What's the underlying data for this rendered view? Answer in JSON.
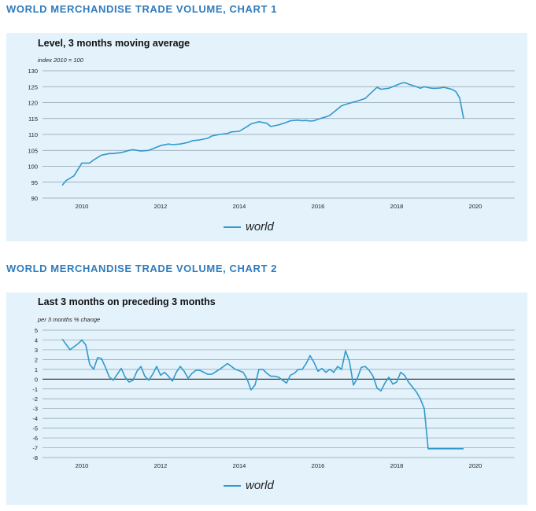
{
  "charts": {
    "c1": {
      "section_title": "WORLD MERCHANDISE TRADE VOLUME, CHART 1",
      "panel_title": "Level, 3 months moving average",
      "subtitle": "index 2010 = 100",
      "legend": "world"
    },
    "c2": {
      "section_title": "WORLD MERCHANDISE TRADE VOLUME, CHART 2",
      "panel_title": "Last 3 months on preceding 3 months",
      "subtitle": "per 3 months % change",
      "legend": "world"
    }
  },
  "colors": {
    "line": "#3399cc",
    "panel": "#e3f2fb",
    "heading": "#2f7bbd"
  },
  "chart_data": [
    {
      "type": "line",
      "title": "Level, 3 months moving average",
      "ylabel": "index 2010 = 100",
      "xlabel": "",
      "ylim": [
        90,
        130
      ],
      "xlim": [
        2009.0,
        2021.0
      ],
      "yticks": [
        90,
        95,
        100,
        105,
        110,
        115,
        120,
        125,
        130
      ],
      "xticks": [
        2010,
        2012,
        2014,
        2016,
        2018,
        2020
      ],
      "grid": true,
      "legend_position": "bottom-center",
      "series": [
        {
          "name": "world",
          "x": [
            2009.5,
            2009.6,
            2009.8,
            2009.9,
            2010.0,
            2010.2,
            2010.3,
            2010.5,
            2010.7,
            2010.8,
            2011.0,
            2011.2,
            2011.3,
            2011.5,
            2011.7,
            2011.8,
            2012.0,
            2012.2,
            2012.3,
            2012.5,
            2012.7,
            2012.8,
            2013.0,
            2013.2,
            2013.3,
            2013.5,
            2013.7,
            2013.8,
            2014.0,
            2014.2,
            2014.3,
            2014.5,
            2014.7,
            2014.8,
            2015.0,
            2015.2,
            2015.3,
            2015.5,
            2015.6,
            2015.7,
            2015.8,
            2015.9,
            2016.0,
            2016.2,
            2016.3,
            2016.5,
            2016.6,
            2016.8,
            2017.0,
            2017.2,
            2017.3,
            2017.5,
            2017.6,
            2017.8,
            2018.0,
            2018.1,
            2018.2,
            2018.3,
            2018.5,
            2018.6,
            2018.7,
            2018.8,
            2018.9,
            2019.0,
            2019.1,
            2019.2,
            2019.3,
            2019.4,
            2019.5,
            2019.6,
            2019.7
          ],
          "values": [
            94,
            95.5,
            97,
            99,
            101,
            101,
            102,
            103.5,
            104,
            104,
            104.3,
            105,
            105.2,
            104.8,
            105,
            105.5,
            106.5,
            107,
            106.8,
            107,
            107.5,
            108,
            108.3,
            108.8,
            109.5,
            110,
            110.3,
            110.8,
            111,
            112.5,
            113.3,
            114,
            113.5,
            112.5,
            113,
            113.8,
            114.3,
            114.5,
            114.3,
            114.4,
            114.2,
            114.3,
            114.8,
            115.5,
            116,
            118,
            119,
            119.8,
            120.5,
            121.3,
            122.5,
            124.8,
            124.2,
            124.5,
            125.5,
            126,
            126.3,
            125.8,
            125,
            124.5,
            125,
            124.7,
            124.5,
            124.5,
            124.6,
            124.8,
            124.5,
            124.2,
            123.5,
            121.5,
            115
          ]
        }
      ]
    },
    {
      "type": "line",
      "title": "Last 3 months on preceding 3 months",
      "ylabel": "per 3 months % change",
      "xlabel": "",
      "ylim": [
        -8,
        5
      ],
      "xlim": [
        2009.0,
        2021.0
      ],
      "yticks": [
        -8,
        -7,
        -6,
        -5,
        -4,
        -3,
        -2,
        -1,
        0,
        1,
        2,
        3,
        4,
        5
      ],
      "xticks": [
        2010,
        2012,
        2014,
        2016,
        2018,
        2020
      ],
      "grid": true,
      "legend_position": "bottom-center",
      "series": [
        {
          "name": "world",
          "x": [
            2009.5,
            2009.7,
            2009.9,
            2010.0,
            2010.1,
            2010.2,
            2010.3,
            2010.4,
            2010.5,
            2010.6,
            2010.7,
            2010.8,
            2010.9,
            2011.0,
            2011.1,
            2011.2,
            2011.3,
            2011.4,
            2011.5,
            2011.6,
            2011.7,
            2011.8,
            2011.9,
            2012.0,
            2012.1,
            2012.2,
            2012.3,
            2012.4,
            2012.5,
            2012.6,
            2012.7,
            2012.8,
            2012.9,
            2013.0,
            2013.1,
            2013.2,
            2013.3,
            2013.5,
            2013.7,
            2013.9,
            2014.1,
            2014.2,
            2014.3,
            2014.4,
            2014.5,
            2014.6,
            2014.7,
            2014.8,
            2014.9,
            2015.0,
            2015.2,
            2015.3,
            2015.4,
            2015.5,
            2015.6,
            2015.7,
            2015.8,
            2015.9,
            2016.0,
            2016.1,
            2016.2,
            2016.3,
            2016.4,
            2016.5,
            2016.6,
            2016.7,
            2016.8,
            2016.9,
            2017.0,
            2017.1,
            2017.2,
            2017.3,
            2017.4,
            2017.5,
            2017.6,
            2017.7,
            2017.8,
            2017.9,
            2018.0,
            2018.1,
            2018.2,
            2018.3,
            2018.4,
            2018.5,
            2018.6,
            2018.7,
            2018.8,
            2018.9,
            2019.0,
            2019.1,
            2019.2,
            2019.3,
            2019.4,
            2019.5,
            2019.6,
            2019.7
          ],
          "values": [
            4.1,
            3.0,
            3.6,
            4.0,
            3.5,
            1.5,
            1.0,
            2.2,
            2.1,
            1.2,
            0.2,
            -0.1,
            0.5,
            1.1,
            0.2,
            -0.3,
            -0.1,
            0.8,
            1.3,
            0.3,
            -0.1,
            0.5,
            1.3,
            0.4,
            0.7,
            0.3,
            -0.2,
            0.7,
            1.3,
            0.8,
            0.1,
            0.6,
            0.9,
            0.9,
            0.7,
            0.5,
            0.5,
            1.0,
            1.6,
            1.0,
            0.7,
            0.0,
            -1.1,
            -0.6,
            1.0,
            1.0,
            0.6,
            0.3,
            0.3,
            0.2,
            -0.4,
            0.4,
            0.6,
            1.0,
            1.0,
            1.6,
            2.4,
            1.7,
            0.8,
            1.1,
            0.7,
            1.0,
            0.7,
            1.3,
            1.0,
            2.9,
            1.8,
            -0.6,
            0.1,
            1.2,
            1.3,
            0.9,
            0.3,
            -0.9,
            -1.2,
            -0.4,
            0.2,
            -0.5,
            -0.3,
            0.7,
            0.4,
            -0.3,
            -0.8,
            -1.3,
            -2.0,
            -3.0,
            -7.1,
            -7.1,
            -7.1,
            -7.1,
            -7.1,
            -7.1,
            -7.1,
            -7.1,
            -7.1,
            -7.1
          ]
        }
      ]
    }
  ]
}
